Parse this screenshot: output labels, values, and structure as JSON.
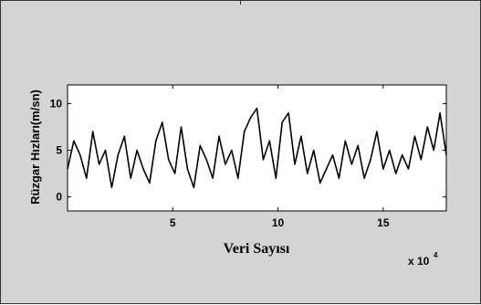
{
  "chart_data": {
    "type": "line",
    "title": "",
    "xlabel": "Veri Sayısı",
    "ylabel": "Rüzgar Hızları(m/sn)",
    "x_multiplier_base": "x 10",
    "x_multiplier_exponent": "4",
    "xlim": [
      0,
      18
    ],
    "ylim": [
      -1.5,
      12
    ],
    "x_ticks": [
      5,
      10,
      15
    ],
    "x_tick_labels": [
      "5",
      "10",
      "15"
    ],
    "y_ticks": [
      0,
      5,
      10
    ],
    "y_tick_labels": [
      "0",
      "5",
      "10"
    ],
    "grid": false,
    "legend": "none",
    "series": [
      {
        "color": "#000000",
        "x": [
          0.0,
          0.3,
          0.6,
          0.9,
          1.2,
          1.5,
          1.8,
          2.1,
          2.4,
          2.7,
          3.0,
          3.3,
          3.6,
          3.9,
          4.2,
          4.5,
          4.8,
          5.1,
          5.4,
          5.7,
          6.0,
          6.3,
          6.6,
          6.9,
          7.2,
          7.5,
          7.8,
          8.1,
          8.4,
          8.7,
          9.0,
          9.3,
          9.6,
          9.9,
          10.2,
          10.5,
          10.8,
          11.1,
          11.4,
          11.7,
          12.0,
          12.3,
          12.6,
          12.9,
          13.2,
          13.5,
          13.8,
          14.1,
          14.4,
          14.7,
          15.0,
          15.3,
          15.6,
          15.9,
          16.2,
          16.5,
          16.8,
          17.1,
          17.4,
          17.7,
          18.0
        ],
        "y": [
          3.0,
          6.0,
          4.5,
          2.0,
          7.0,
          3.5,
          5.0,
          1.0,
          4.5,
          6.5,
          2.0,
          5.0,
          3.0,
          1.5,
          6.0,
          8.0,
          4.0,
          2.5,
          7.5,
          3.0,
          1.0,
          5.5,
          4.0,
          2.0,
          6.5,
          3.5,
          5.0,
          2.0,
          7.0,
          8.5,
          9.5,
          4.0,
          6.0,
          2.0,
          8.0,
          9.0,
          3.5,
          6.5,
          2.5,
          5.0,
          1.5,
          3.0,
          4.5,
          2.0,
          6.0,
          3.5,
          5.5,
          2.0,
          4.0,
          7.0,
          3.0,
          5.0,
          2.5,
          4.5,
          3.0,
          6.5,
          4.0,
          7.5,
          5.0,
          9.0,
          4.5
        ]
      }
    ]
  }
}
